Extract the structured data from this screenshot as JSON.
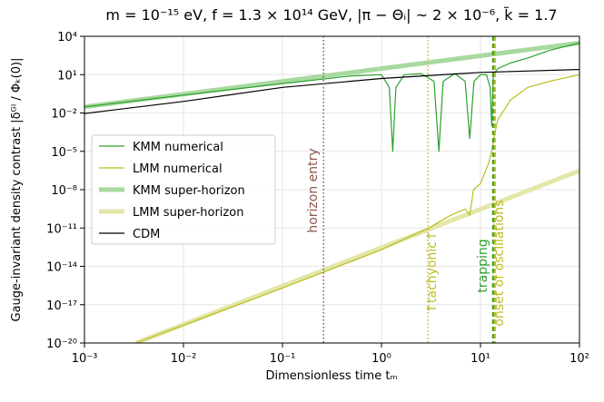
{
  "chart_data": {
    "type": "line",
    "title": "m = 10⁻¹⁵ eV,  f = 1.3 × 10¹⁴ GeV,  |π − Θᵢ| ~ 2 × 10⁻⁶,  k̃ = 1.7",
    "xlabel": "Dimensionless time tₘ",
    "ylabel": "Gauge-invariant density contrast |δᴳᴵ / Φₖ(0)|",
    "xscale": "log",
    "yscale": "log",
    "grid": true,
    "legend": "center left",
    "xlim": [
      0.001,
      100
    ],
    "ylim": [
      1e-20,
      10000
    ],
    "xticks": [
      {
        "value": 0.001,
        "label": "10⁻³"
      },
      {
        "value": 0.01,
        "label": "10⁻²"
      },
      {
        "value": 0.1,
        "label": "10⁻¹"
      },
      {
        "value": 1,
        "label": "10⁰"
      },
      {
        "value": 10,
        "label": "10¹"
      },
      {
        "value": 100,
        "label": "10²"
      }
    ],
    "yticks": [
      {
        "value": 1e-20,
        "label": "10⁻²⁰"
      },
      {
        "value": 1e-17,
        "label": "10⁻¹⁷"
      },
      {
        "value": 1e-14,
        "label": "10⁻¹⁴"
      },
      {
        "value": 1e-11,
        "label": "10⁻¹¹"
      },
      {
        "value": 1e-08,
        "label": "10⁻⁸"
      },
      {
        "value": 1e-05,
        "label": "10⁻⁵"
      },
      {
        "value": 0.01,
        "label": "10⁻²"
      },
      {
        "value": 10,
        "label": "10¹"
      },
      {
        "value": 10000,
        "label": "10⁴"
      }
    ],
    "series": [
      {
        "name": "KMM numerical",
        "color": "#2ca02c",
        "linewidth": 1.2,
        "x": [
          0.001,
          0.01,
          0.1,
          0.5,
          1.0,
          1.2,
          1.3,
          1.4,
          1.7,
          2.5,
          3.4,
          3.8,
          4.2,
          5.5,
          7.0,
          7.8,
          8.6,
          10,
          11.5,
          12.5,
          13,
          13.5,
          15,
          20,
          30,
          50,
          100
        ],
        "values": [
          0.03,
          0.25,
          2,
          8,
          10,
          1,
          1e-05,
          1,
          10,
          12,
          3,
          1e-05,
          3,
          12,
          3,
          0.0001,
          3,
          10,
          10,
          1,
          0.001,
          10,
          30,
          80,
          200,
          800,
          3000
        ]
      },
      {
        "name": "LMM numerical",
        "color": "#bcbd22",
        "linewidth": 1.2,
        "x": [
          0.0033,
          0.01,
          0.1,
          1,
          3,
          5,
          7,
          7.8,
          8.5,
          10,
          12,
          13,
          14,
          15,
          20,
          30,
          50,
          100
        ],
        "values": [
          1e-20,
          2.5e-19,
          2e-16,
          2e-13,
          1e-11,
          1e-10,
          3e-10,
          1e-10,
          1e-08,
          3e-08,
          1e-06,
          1e-05,
          0.0003,
          0.003,
          0.1,
          1,
          3,
          10
        ]
      },
      {
        "name": "KMM super-horizon",
        "color": "#a8d9a0",
        "linewidth": 5,
        "x": [
          0.001,
          100
        ],
        "values": [
          0.03,
          3000
        ]
      },
      {
        "name": "LMM super-horizon",
        "color": "#e3e6a8",
        "linewidth": 5,
        "x": [
          0.0033,
          100
        ],
        "values": [
          1e-20,
          3e-07
        ]
      },
      {
        "name": "CDM",
        "color": "#000000",
        "linewidth": 1.2,
        "x": [
          0.001,
          0.01,
          0.1,
          1,
          10,
          100
        ],
        "values": [
          0.009,
          0.08,
          1,
          5,
          15,
          25
        ]
      }
    ],
    "vlines": [
      {
        "x": 0.26,
        "label": "horizon entry",
        "color": "#8c564b",
        "style": "dotted"
      },
      {
        "x": 2.94,
        "label": "↑tachyonic↑",
        "color": "#bcbd22",
        "style": "dotted"
      },
      {
        "x": 13.4,
        "label": "trapping",
        "color": "#2ca02c",
        "style": "dashed"
      },
      {
        "x": 14.0,
        "label": "onset of oscillations",
        "color": "#bcbd22",
        "style": "dashed"
      }
    ]
  }
}
